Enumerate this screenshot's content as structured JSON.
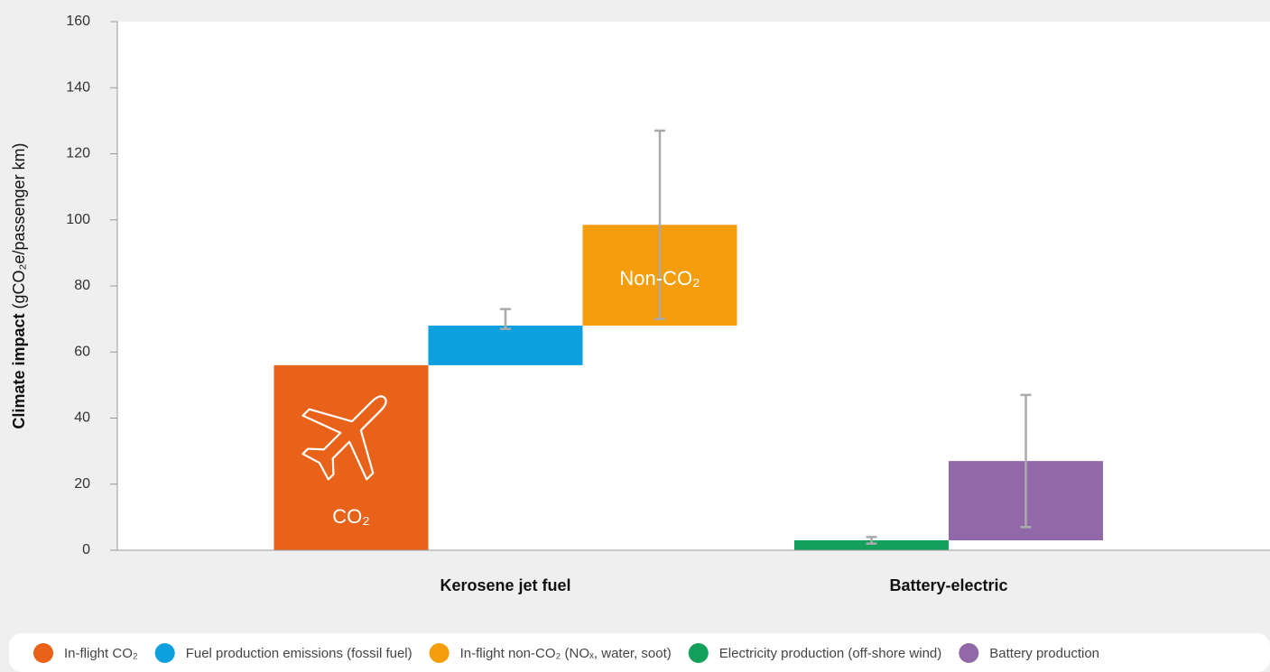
{
  "chart_data": {
    "type": "waterfall",
    "ylabel": {
      "text": "Climate impact",
      "unit": "(gCO₂e/passenger km)"
    },
    "categories": [
      "Kerosene jet fuel",
      "Battery-electric"
    ],
    "series": [
      {
        "name": "In-flight CO₂",
        "color": "#e8621a",
        "values": [
          56,
          null
        ],
        "errors": [
          null,
          null
        ]
      },
      {
        "name": "Fuel production emissions (fossil fuel)",
        "color": "#0e9fdf",
        "values": [
          12,
          null
        ],
        "errors": [
          [
            67,
            73
          ],
          null
        ]
      },
      {
        "name": "In-flight non-CO₂ (NOₓ, water, soot)",
        "color": "#f59d0a",
        "values": [
          30.5,
          null
        ],
        "errors": [
          [
            70,
            127
          ],
          null
        ]
      },
      {
        "name": "Electricity production (off-shore wind)",
        "color": "#13a05a",
        "values": [
          null,
          3
        ],
        "errors": [
          null,
          [
            2,
            4
          ]
        ]
      },
      {
        "name": "Battery production",
        "color": "#9169a8",
        "values": [
          null,
          24
        ],
        "errors": [
          null,
          [
            7,
            47
          ]
        ]
      }
    ],
    "annotations": [
      "CO₂",
      "Non-CO₂"
    ],
    "ylim": [
      0,
      160
    ],
    "yticks": [
      0,
      20,
      40,
      60,
      80,
      100,
      120,
      140,
      160
    ],
    "error_color": "#aaaaaa"
  }
}
